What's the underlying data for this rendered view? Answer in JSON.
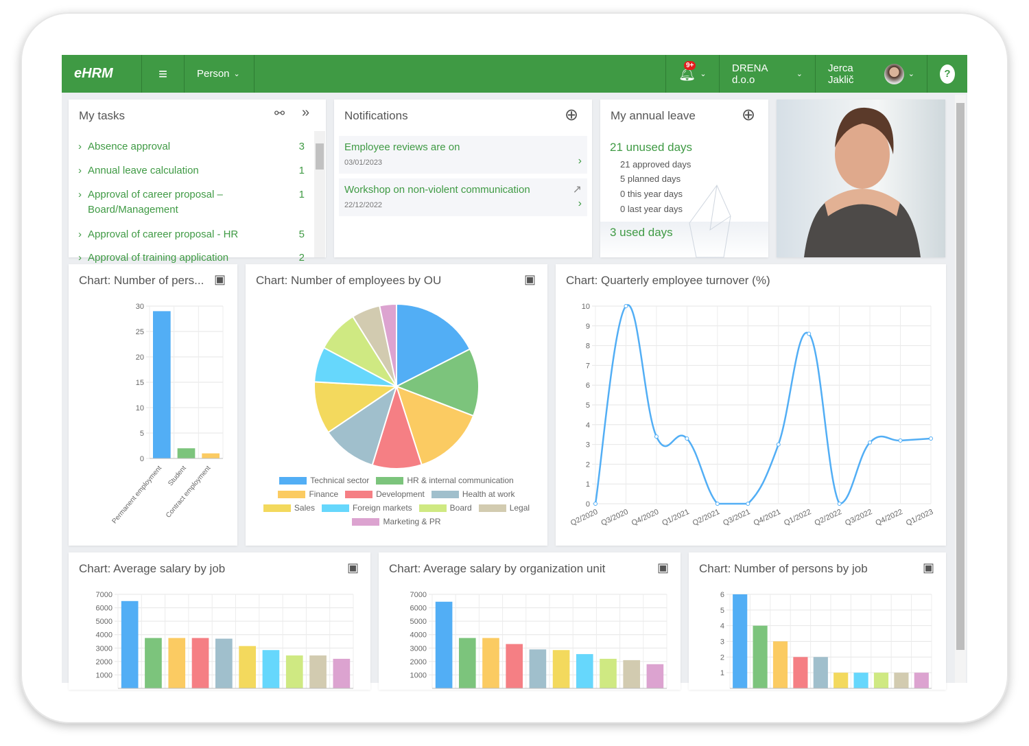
{
  "header": {
    "logo": "eHRM",
    "menu_icon": "hamburger-icon",
    "person_menu": "Person",
    "notification_badge": "9+",
    "company": "DRENA d.o.o",
    "user": "Jerca Jaklič",
    "help": "?",
    "accent": "#3f9a44"
  },
  "tasks": {
    "title": "My tasks",
    "items": [
      {
        "label": "Absence approval",
        "count": "3"
      },
      {
        "label": "Annual leave calculation",
        "count": "1"
      },
      {
        "label": "Approval of career proposal –",
        "label2": "Board/Management",
        "count": "1"
      },
      {
        "label": "Approval of career proposal - HR",
        "count": "5"
      },
      {
        "label": "Approval of training application",
        "count": "2"
      }
    ]
  },
  "notifications": {
    "title": "Notifications",
    "items": [
      {
        "title": "Employee reviews are on",
        "date": "03/01/2023"
      },
      {
        "title": "Workshop on non-violent communication",
        "date": "22/12/2022"
      }
    ]
  },
  "leave": {
    "title": "My annual leave",
    "unused": "21 unused days",
    "approved": "21 approved days",
    "planned": "5 planned days",
    "this_year": "0 this year days",
    "last_year": "0 last year days",
    "used": "3 used days"
  },
  "palette": [
    "#52aef5",
    "#7cc47c",
    "#fbcb62",
    "#f57f84",
    "#a0bfcc",
    "#f3d95d",
    "#66d7fc",
    "#cfe982",
    "#d2cbb0",
    "#dca3d0"
  ],
  "chart_data": [
    {
      "id": "persons",
      "type": "bar",
      "title": "Chart: Number of pers...",
      "categories": [
        "Permanent employment",
        "Student",
        "Contract employment"
      ],
      "values": [
        29,
        2,
        1
      ],
      "ylim": [
        0,
        30
      ],
      "yticks": [
        0,
        5,
        10,
        15,
        20,
        25,
        30
      ],
      "grid": true
    },
    {
      "id": "ou",
      "type": "pie",
      "title": "Chart: Number of employees by OU",
      "categories": [
        "Technical sector",
        "HR & internal communication",
        "Finance",
        "Development",
        "Health at work",
        "Sales",
        "Foreign markets",
        "Board",
        "Legal",
        "Marketing & PR"
      ],
      "values": [
        17.5,
        13.3,
        14.2,
        9.7,
        10.8,
        10.3,
        6.9,
        8.3,
        5.6,
        3.3
      ],
      "legend": "bottom"
    },
    {
      "id": "turnover",
      "type": "line",
      "title": "Chart: Quarterly employee turnover (%)",
      "categories": [
        "Q2/2020",
        "Q3/2020",
        "Q4/2020",
        "Q1/2021",
        "Q2/2021",
        "Q3/2021",
        "Q4/2021",
        "Q1/2022",
        "Q2/2022",
        "Q3/2022",
        "Q4/2022",
        "Q1/2023"
      ],
      "values": [
        0,
        10,
        3.4,
        3.3,
        0,
        0,
        3,
        8.6,
        0,
        3.1,
        3.2,
        3.3
      ],
      "ylim": [
        0,
        10
      ],
      "yticks": [
        0,
        1,
        2,
        3,
        4,
        5,
        6,
        7,
        8,
        9,
        10
      ],
      "grid": true
    },
    {
      "id": "salaryjob",
      "type": "bar",
      "title": "Chart: Average salary by job",
      "values": [
        6500,
        3750,
        3750,
        3750,
        3700,
        3150,
        2850,
        2450,
        2450,
        2200
      ],
      "ylim": [
        0,
        7000
      ],
      "yticks": [
        1000,
        2000,
        3000,
        4000,
        5000,
        6000,
        7000
      ],
      "grid": true
    },
    {
      "id": "salaryou",
      "type": "bar",
      "title": "Chart: Average salary by organization unit",
      "values": [
        6450,
        3750,
        3750,
        3300,
        2900,
        2850,
        2550,
        2200,
        2100,
        1800
      ],
      "ylim": [
        0,
        7000
      ],
      "yticks": [
        1000,
        2000,
        3000,
        4000,
        5000,
        6000,
        7000
      ],
      "grid": true
    },
    {
      "id": "personsjob",
      "type": "bar",
      "title": "Chart: Number of persons by job",
      "values": [
        6,
        4,
        3,
        2,
        2,
        1,
        1,
        1,
        1,
        1
      ],
      "ylim": [
        0,
        6
      ],
      "yticks": [
        1,
        2,
        3,
        4,
        5,
        6
      ],
      "grid": true
    }
  ]
}
